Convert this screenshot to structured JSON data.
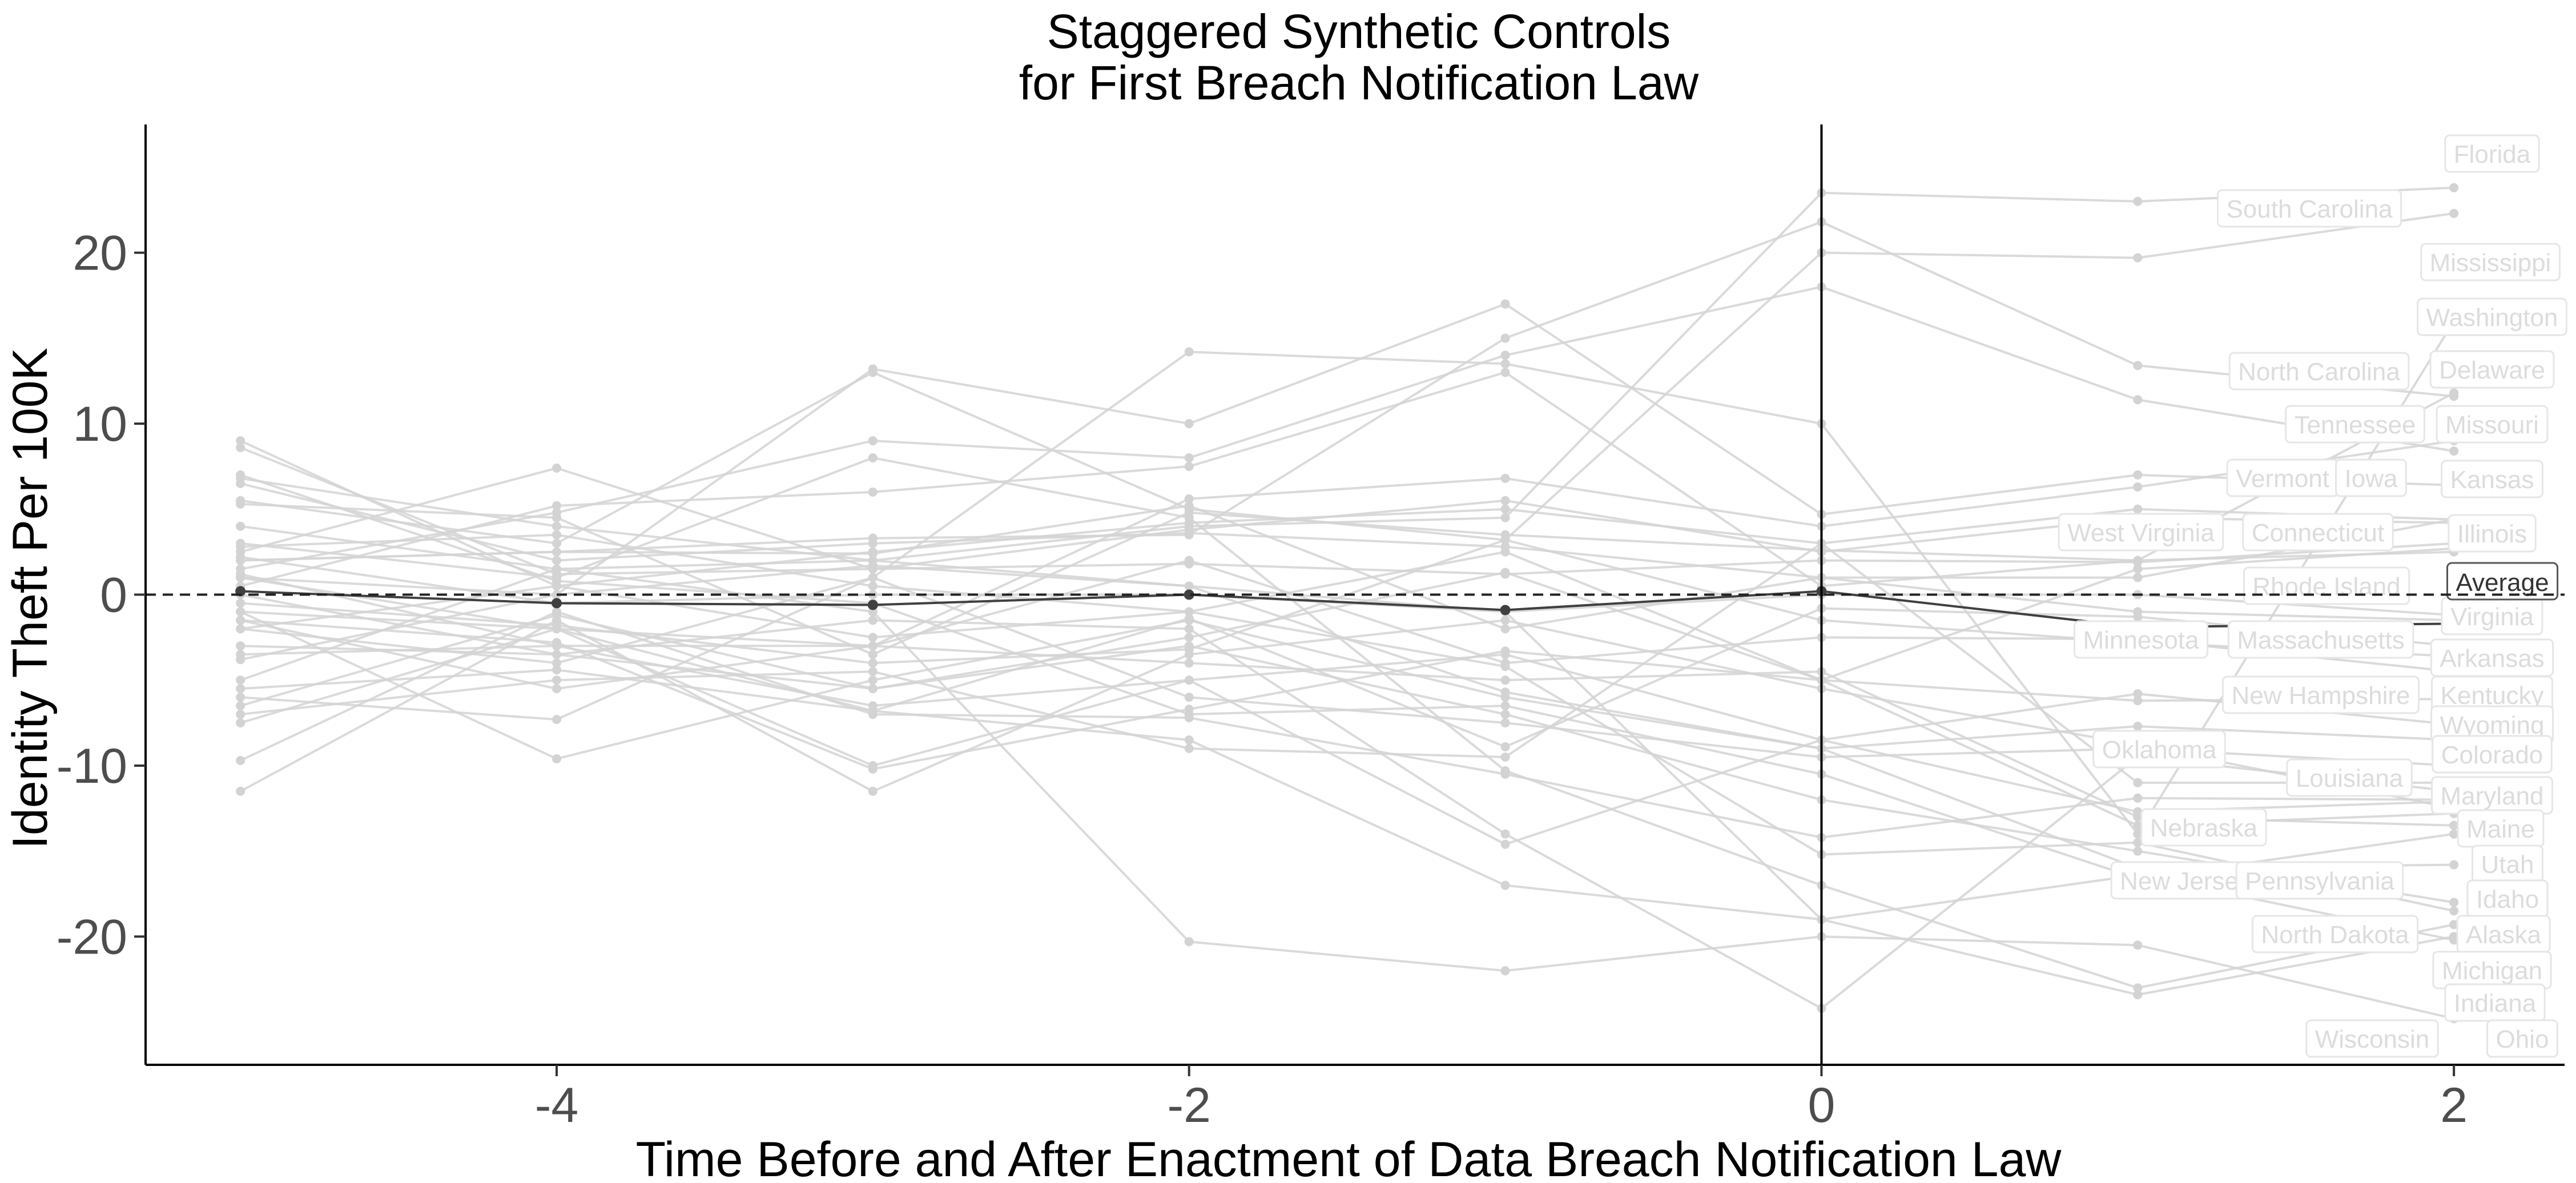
{
  "chart_data": {
    "type": "line",
    "title": [
      "Staggered Synthetic Controls",
      "for First Breach Notification Law"
    ],
    "xlabel": "Time Before and After Enactment of Data Breach Notification Law",
    "ylabel": "Identity Theft Per 100K",
    "xlim": [
      -5.3,
      2.35
    ],
    "ylim": [
      -27.5,
      27.5
    ],
    "xticks": [
      -4,
      -2,
      0,
      2
    ],
    "xtick_labels": [
      "-4",
      "-2",
      "0",
      "2"
    ],
    "yticks": [
      20,
      10,
      0,
      -10,
      -20
    ],
    "ytick_labels": [
      "20",
      "10",
      "0",
      "-10",
      "-20"
    ],
    "reference_lines": {
      "horizontal_dashed_at": 0,
      "vertical_solid_at": 0
    },
    "x": [
      -5,
      -4,
      -3,
      -2,
      -1,
      0,
      1,
      2
    ],
    "grid": false,
    "legend": "none",
    "colors": {
      "series": "#d3d3d3",
      "average": "#404040",
      "label_text": "#dcdcdc",
      "label_border": "#e6e6e6"
    },
    "average": {
      "name": "Average",
      "values": [
        0.2,
        -0.5,
        -0.6,
        0.0,
        -0.9,
        0.2,
        -1.9,
        -1.7
      ]
    },
    "series": [
      {
        "name": "Florida",
        "values": [
          6.8,
          4.0,
          2.0,
          4.0,
          4.5,
          23.5,
          23.0,
          23.8
        ]
      },
      {
        "name": "South Carolina",
        "values": [
          5.5,
          3.0,
          13.0,
          5.0,
          3.2,
          20.0,
          19.7,
          22.3
        ]
      },
      {
        "name": "Mississippi",
        "values": [
          -2.0,
          -4.0,
          1.0,
          14.2,
          13.5,
          10.0,
          -14.0,
          16.0
        ]
      },
      {
        "name": "Washington",
        "values": [
          2.0,
          2.5,
          3.3,
          3.5,
          15.0,
          21.8,
          13.4,
          11.6
        ]
      },
      {
        "name": "North Carolina",
        "values": [
          1.5,
          4.8,
          9.0,
          8.0,
          14.0,
          18.0,
          11.4,
          8.4
        ]
      },
      {
        "name": "Delaware",
        "values": [
          0.5,
          5.2,
          6.0,
          7.5,
          13.0,
          0.5,
          2.0,
          11.8
        ]
      },
      {
        "name": "Tennessee",
        "values": [
          1.0,
          0.0,
          13.2,
          10.0,
          17.0,
          4.7,
          7.0,
          6.4
        ]
      },
      {
        "name": "Missouri",
        "values": [
          -1.5,
          -5.5,
          -3.0,
          5.6,
          6.8,
          4.0,
          6.3,
          9.0
        ]
      },
      {
        "name": "Vermont",
        "values": [
          9.0,
          0.5,
          2.5,
          4.2,
          5.0,
          3.0,
          5.0,
          4.4
        ]
      },
      {
        "name": "Iowa",
        "values": [
          8.6,
          1.2,
          1.5,
          3.8,
          5.5,
          2.5,
          4.5,
          4.2
        ]
      },
      {
        "name": "Kansas",
        "values": [
          6.5,
          2.0,
          3.0,
          3.6,
          2.8,
          1.0,
          1.0,
          4.4
        ]
      },
      {
        "name": "West Virginia",
        "values": [
          2.8,
          3.5,
          0.5,
          -1.0,
          2.5,
          -5.0,
          1.5,
          2.7
        ]
      },
      {
        "name": "Connecticut",
        "values": [
          5.3,
          4.5,
          -3.5,
          4.8,
          3.5,
          2.6,
          2.0,
          2.5
        ]
      },
      {
        "name": "Illinois",
        "values": [
          2.5,
          7.4,
          1.5,
          1.8,
          1.2,
          2.0,
          1.9,
          3.0
        ]
      },
      {
        "name": "Rhode Island",
        "values": [
          -3.8,
          0.0,
          1.7,
          0.5,
          -1.0,
          0.0,
          0.0,
          -1.2
        ]
      },
      {
        "name": "Virginia",
        "values": [
          2.0,
          2.5,
          2.4,
          5.2,
          -2.0,
          1.0,
          -1.0,
          -1.5
        ]
      },
      {
        "name": "Minnesota",
        "values": [
          -5.5,
          -4.4,
          -6.8,
          -1.4,
          -8.9,
          -0.8,
          -1.3,
          -3.0
        ]
      },
      {
        "name": "Massachusetts",
        "values": [
          1.0,
          -2.0,
          -3.0,
          2.0,
          -4.0,
          -2.5,
          -2.6,
          -4.5
        ]
      },
      {
        "name": "Arkansas",
        "values": [
          -0.5,
          -1.8,
          -4.0,
          -3.2,
          3.2,
          -1.5,
          -2.8,
          -3.6
        ]
      },
      {
        "name": "New Hampshire",
        "values": [
          -3.0,
          -3.5,
          -5.5,
          -2.5,
          1.3,
          -5.0,
          -6.2,
          -6.1
        ]
      },
      {
        "name": "Kentucky",
        "values": [
          1.2,
          -3.0,
          -6.5,
          -5.0,
          -3.5,
          -8.5,
          -5.8,
          -7.6
        ]
      },
      {
        "name": "Wyoming",
        "values": [
          -1.0,
          -9.6,
          -5.0,
          -1.5,
          -6.0,
          -9.0,
          -7.7,
          -8.5
        ]
      },
      {
        "name": "Colorado",
        "values": [
          -6.0,
          -7.3,
          1.0,
          -6.0,
          -7.5,
          -9.5,
          -9.0,
          -10.0
        ]
      },
      {
        "name": "Oklahoma",
        "values": [
          -11.5,
          -1.5,
          -11.5,
          -3.5,
          -1.5,
          -5.5,
          -8.8,
          -12.5
        ]
      },
      {
        "name": "Louisiana",
        "values": [
          -7.0,
          -5.0,
          -4.5,
          -9.0,
          -9.5,
          3.0,
          -11.0,
          -11.0
        ]
      },
      {
        "name": "Maryland",
        "values": [
          -9.7,
          -1.0,
          -7.0,
          -7.2,
          -10.5,
          -14.2,
          -11.9,
          -12.0
        ]
      },
      {
        "name": "Nebraska",
        "values": [
          -1.5,
          -2.8,
          -10.2,
          -6.7,
          -3.3,
          -5.0,
          -13.5,
          -12.8
        ]
      },
      {
        "name": "Maine",
        "values": [
          -3.5,
          -3.0,
          -3.0,
          -4.0,
          -5.0,
          -4.5,
          -13.0,
          -13.5
        ]
      },
      {
        "name": "Utah",
        "values": [
          4.0,
          1.5,
          2.0,
          0.5,
          -5.7,
          -9.0,
          -16.0,
          -15.8
        ]
      },
      {
        "name": "New Jersey",
        "values": [
          7.0,
          0.8,
          -0.5,
          -7.0,
          -6.5,
          -10.5,
          -16.6,
          -14.0
        ]
      },
      {
        "name": "Pennsylvania",
        "values": [
          -6.5,
          -1.2,
          -5.5,
          -3.0,
          -7.0,
          -12.0,
          -15.0,
          -18.0
        ]
      },
      {
        "name": "Idaho",
        "values": [
          -2.0,
          0.5,
          -2.5,
          -1.0,
          -4.2,
          -15.2,
          -14.5,
          -18.5
        ]
      },
      {
        "name": "Alaska",
        "values": [
          -7.5,
          -2.0,
          -6.8,
          -8.5,
          -17.0,
          -19.0,
          -16.4,
          -20.2
        ]
      },
      {
        "name": "North Dakota",
        "values": [
          3.0,
          1.0,
          8.0,
          4.5,
          -10.3,
          -17.0,
          -23.0,
          -19.3
        ]
      },
      {
        "name": "Michigan",
        "values": [
          2.2,
          -0.5,
          0.0,
          0.0,
          -1.0,
          -19.0,
          -23.4,
          -20.0
        ]
      },
      {
        "name": "Indiana",
        "values": [
          -5.0,
          1.5,
          -1.0,
          -20.3,
          -22.0,
          -20.0,
          -20.5,
          -24.8
        ]
      },
      {
        "name": "Wisconsin",
        "values": [
          0.0,
          -3.5,
          -1.5,
          -2.0,
          -14.0,
          -24.2,
          -9.5,
          -11.5
        ]
      },
      {
        "name": "Ohio",
        "values": [
          -1.0,
          -2.0,
          -10.0,
          -5.0,
          -14.6,
          -8.5,
          -12.7,
          -12.1
        ]
      }
    ],
    "labels": [
      {
        "name": "Florida"
      },
      {
        "name": "South Carolina"
      },
      {
        "name": "Mississippi"
      },
      {
        "name": "Washington"
      },
      {
        "name": "North Carolina"
      },
      {
        "name": "Delaware"
      },
      {
        "name": "Tennessee"
      },
      {
        "name": "Missouri"
      },
      {
        "name": "Vermont"
      },
      {
        "name": "Iowa"
      },
      {
        "name": "Kansas"
      },
      {
        "name": "West Virginia"
      },
      {
        "name": "Connecticut"
      },
      {
        "name": "Illinois"
      },
      {
        "name": "Rhode Island"
      },
      {
        "name": "Virginia"
      },
      {
        "name": "Minnesota"
      },
      {
        "name": "Massachusetts"
      },
      {
        "name": "Arkansas"
      },
      {
        "name": "New Hampshire"
      },
      {
        "name": "Kentucky"
      },
      {
        "name": "Wyoming"
      },
      {
        "name": "Oklahoma"
      },
      {
        "name": "Colorado"
      },
      {
        "name": "Louisiana"
      },
      {
        "name": "Maryland"
      },
      {
        "name": "Nebraska"
      },
      {
        "name": "Maine"
      },
      {
        "name": "Utah"
      },
      {
        "name": "New Jersey"
      },
      {
        "name": "Pennsylvania"
      },
      {
        "name": "Idaho"
      },
      {
        "name": "North Dakota"
      },
      {
        "name": "Alaska"
      },
      {
        "name": "Michigan"
      },
      {
        "name": "Indiana"
      },
      {
        "name": "Wisconsin"
      },
      {
        "name": "Ohio"
      }
    ]
  }
}
